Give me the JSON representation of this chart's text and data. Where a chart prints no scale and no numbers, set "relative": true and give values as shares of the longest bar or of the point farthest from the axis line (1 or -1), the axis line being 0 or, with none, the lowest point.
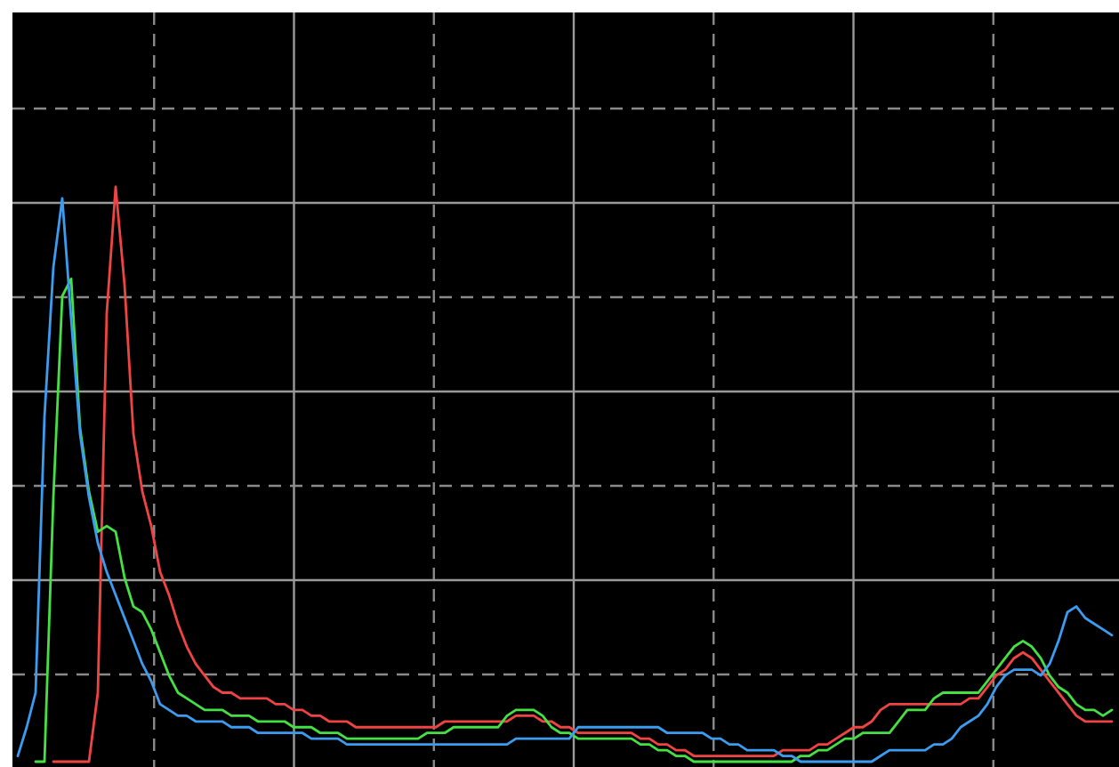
{
  "chart_data": {
    "type": "line",
    "relative": true,
    "grid": true,
    "categories": [
      null,
      null,
      null,
      null,
      null,
      null,
      null,
      null,
      null,
      null,
      null,
      null,
      null,
      null,
      null,
      null,
      null,
      null,
      null,
      null,
      null,
      null,
      null,
      null,
      null,
      null,
      null,
      null,
      null,
      null,
      null,
      null,
      null,
      null,
      null,
      null,
      null,
      null,
      null,
      null,
      null,
      null,
      null,
      null,
      null,
      null,
      null,
      null,
      null,
      null,
      null,
      null,
      null,
      null,
      null,
      null,
      null,
      null,
      null,
      null,
      null,
      null,
      null,
      null,
      null,
      null,
      null,
      null,
      null,
      null,
      null,
      null,
      null,
      null,
      null,
      null,
      null,
      null,
      null,
      null,
      null,
      null,
      null,
      null,
      null,
      null,
      null,
      null,
      null,
      null,
      null,
      null,
      null,
      null,
      null,
      null,
      null,
      null,
      null,
      null,
      null,
      null,
      null,
      null,
      null,
      null,
      null,
      null,
      null,
      null,
      null,
      null,
      null,
      null,
      null,
      null,
      null,
      null,
      null,
      null,
      null,
      null,
      null,
      null
    ],
    "series": [
      {
        "color": "#f04444",
        "values": [
          null,
          null,
          null,
          null,
          0,
          0,
          0,
          0,
          0,
          0.12,
          0.78,
          1,
          0.83,
          0.57,
          0.47,
          0.41,
          0.33,
          0.29,
          0.24,
          0.2,
          0.17,
          0.15,
          0.13,
          0.12,
          0.12,
          0.11,
          0.11,
          0.11,
          0.11,
          0.1,
          0.1,
          0.09,
          0.09,
          0.08,
          0.08,
          0.07,
          0.07,
          0.07,
          0.06,
          0.06,
          0.06,
          0.06,
          0.06,
          0.06,
          0.06,
          0.06,
          0.06,
          0.06,
          0.07,
          0.07,
          0.07,
          0.07,
          0.07,
          0.07,
          0.07,
          0.07,
          0.08,
          0.08,
          0.08,
          0.07,
          0.07,
          0.06,
          0.06,
          0.05,
          0.05,
          0.05,
          0.05,
          0.05,
          0.05,
          0.05,
          0.04,
          0.04,
          0.03,
          0.03,
          0.02,
          0.02,
          0.01,
          0.01,
          0.01,
          0.01,
          0.01,
          0.01,
          0.01,
          0.01,
          0.01,
          0.01,
          0.02,
          0.02,
          0.02,
          0.02,
          0.03,
          0.03,
          0.04,
          0.05,
          0.06,
          0.06,
          0.07,
          0.09,
          0.1,
          0.1,
          0.1,
          0.1,
          0.1,
          0.1,
          0.1,
          0.1,
          0.1,
          0.11,
          0.11,
          0.13,
          0.15,
          0.16,
          0.18,
          0.19,
          0.18,
          0.16,
          0.14,
          0.12,
          0.1,
          0.08,
          0.07,
          0.07,
          0.07,
          0.07
        ]
      },
      {
        "color": "#44e044",
        "values": [
          null,
          null,
          0,
          0,
          0.46,
          0.81,
          0.84,
          0.58,
          0.47,
          0.4,
          0.41,
          0.4,
          0.32,
          0.27,
          0.26,
          0.23,
          0.19,
          0.15,
          0.12,
          0.11,
          0.1,
          0.09,
          0.09,
          0.09,
          0.08,
          0.08,
          0.08,
          0.07,
          0.07,
          0.07,
          0.07,
          0.06,
          0.06,
          0.06,
          0.05,
          0.05,
          0.05,
          0.04,
          0.04,
          0.04,
          0.04,
          0.04,
          0.04,
          0.04,
          0.04,
          0.04,
          0.05,
          0.05,
          0.05,
          0.06,
          0.06,
          0.06,
          0.06,
          0.06,
          0.06,
          0.08,
          0.09,
          0.09,
          0.09,
          0.08,
          0.06,
          0.05,
          0.05,
          0.04,
          0.04,
          0.04,
          0.04,
          0.04,
          0.04,
          0.04,
          0.03,
          0.03,
          0.02,
          0.02,
          0.01,
          0.01,
          0,
          0,
          0,
          0,
          0,
          0,
          0,
          0,
          0,
          0,
          0,
          0,
          0.01,
          0.01,
          0.02,
          0.02,
          0.03,
          0.04,
          0.04,
          0.05,
          0.05,
          0.05,
          0.05,
          0.07,
          0.09,
          0.09,
          0.09,
          0.11,
          0.12,
          0.12,
          0.12,
          0.12,
          0.12,
          0.14,
          0.16,
          0.18,
          0.2,
          0.21,
          0.2,
          0.18,
          0.15,
          0.13,
          0.12,
          0.1,
          0.09,
          0.09,
          0.08,
          0.09
        ]
      },
      {
        "color": "#3c9cf0",
        "values": [
          0.01,
          0.06,
          0.12,
          0.6,
          0.86,
          0.98,
          0.77,
          0.57,
          0.46,
          0.38,
          0.33,
          0.29,
          0.25,
          0.21,
          0.17,
          0.14,
          0.1,
          0.09,
          0.08,
          0.08,
          0.07,
          0.07,
          0.07,
          0.07,
          0.06,
          0.06,
          0.06,
          0.05,
          0.05,
          0.05,
          0.05,
          0.05,
          0.05,
          0.04,
          0.04,
          0.04,
          0.04,
          0.03,
          0.03,
          0.03,
          0.03,
          0.03,
          0.03,
          0.03,
          0.03,
          0.03,
          0.03,
          0.03,
          0.03,
          0.03,
          0.03,
          0.03,
          0.03,
          0.03,
          0.03,
          0.03,
          0.04,
          0.04,
          0.04,
          0.04,
          0.04,
          0.04,
          0.04,
          0.06,
          0.06,
          0.06,
          0.06,
          0.06,
          0.06,
          0.06,
          0.06,
          0.06,
          0.06,
          0.05,
          0.05,
          0.05,
          0.05,
          0.05,
          0.04,
          0.04,
          0.03,
          0.03,
          0.02,
          0.02,
          0.02,
          0.02,
          0.01,
          0.01,
          0,
          0,
          0,
          0,
          0,
          0,
          0,
          0,
          0,
          0.01,
          0.02,
          0.02,
          0.02,
          0.02,
          0.02,
          0.03,
          0.03,
          0.04,
          0.06,
          0.07,
          0.08,
          0.1,
          0.13,
          0.15,
          0.16,
          0.16,
          0.16,
          0.15,
          0.17,
          0.21,
          0.26,
          0.27,
          0.25,
          0.24,
          0.23,
          0.22
        ]
      }
    ]
  }
}
